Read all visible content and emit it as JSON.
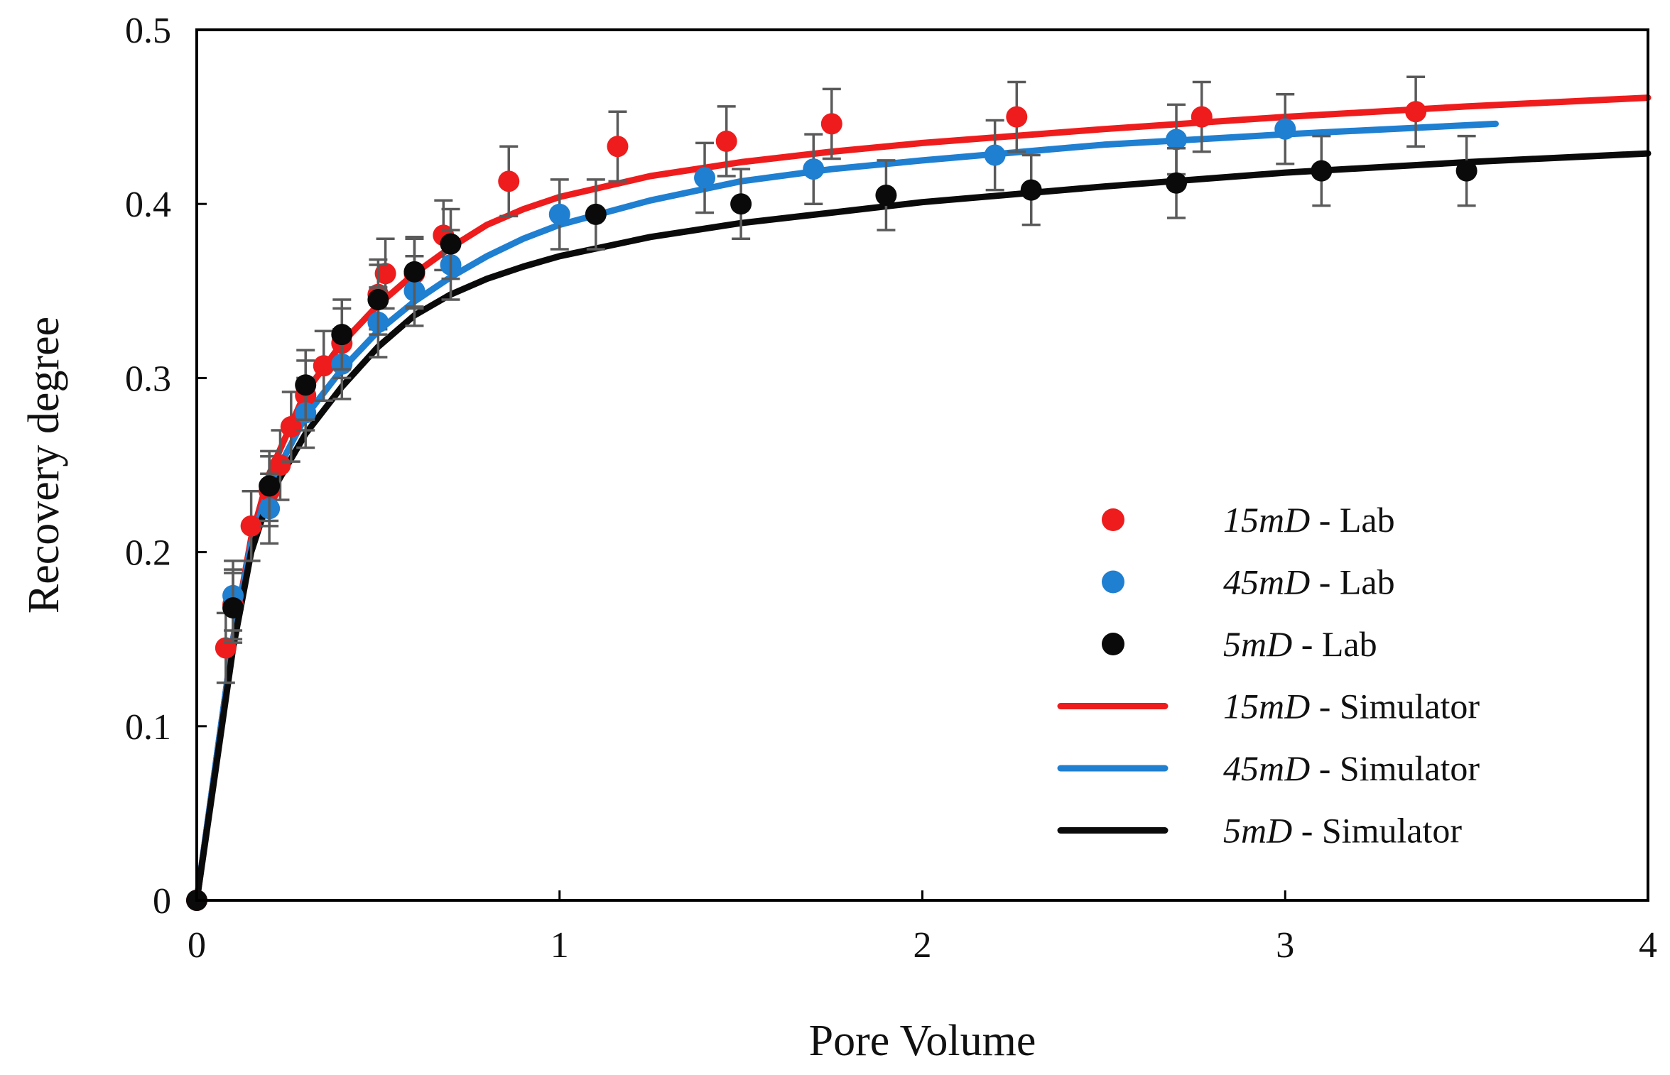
{
  "chart_data": {
    "type": "scatter",
    "title": "",
    "xlabel": "Pore Volume",
    "ylabel": "Recovery degree",
    "xlim": [
      0,
      4
    ],
    "ylim": [
      0,
      0.5
    ],
    "xticks": [
      "0",
      "1",
      "2",
      "3",
      "4"
    ],
    "xtick_values": [
      0,
      1,
      2,
      3,
      4
    ],
    "yticks": [
      "0",
      "0.1",
      "0.2",
      "0.3",
      "0.4",
      "0.5"
    ],
    "ytick_values": [
      0,
      0.1,
      0.2,
      0.3,
      0.4,
      0.5
    ],
    "error_bar": 0.02,
    "legend_position": "bottom-right",
    "colors": {
      "red": "#ee1c1c",
      "blue": "#1f7fd1",
      "black": "#0a0a0a",
      "errorbar": "#5a5a5a",
      "axis": "#000000"
    },
    "series": [
      {
        "name": "15mD - Lab",
        "perm": "15mD",
        "suffix": " - Lab",
        "kind": "scatter",
        "color": "#ee1c1c",
        "x": [
          0,
          0.08,
          0.1,
          0.15,
          0.2,
          0.23,
          0.26,
          0.3,
          0.35,
          0.4,
          0.5,
          0.52,
          0.6,
          0.68,
          0.86,
          1.16,
          1.46,
          1.75,
          2.26,
          2.77,
          3.36
        ],
        "y": [
          0,
          0.145,
          0.17,
          0.215,
          0.235,
          0.25,
          0.272,
          0.29,
          0.307,
          0.32,
          0.348,
          0.36,
          0.36,
          0.382,
          0.413,
          0.433,
          0.436,
          0.446,
          0.45,
          0.45,
          0.453
        ]
      },
      {
        "name": "45mD - Lab",
        "perm": "45mD",
        "suffix": " - Lab",
        "kind": "scatter",
        "color": "#1f7fd1",
        "x": [
          0.1,
          0.2,
          0.3,
          0.4,
          0.5,
          0.6,
          0.7,
          1.0,
          1.4,
          1.7,
          2.2,
          2.7,
          3.0
        ],
        "y": [
          0.175,
          0.225,
          0.28,
          0.308,
          0.332,
          0.35,
          0.365,
          0.394,
          0.415,
          0.42,
          0.428,
          0.437,
          0.443
        ]
      },
      {
        "name": "5mD - Lab",
        "perm": "5mD",
        "suffix": " - Lab",
        "kind": "scatter",
        "color": "#0a0a0a",
        "x": [
          0,
          0.1,
          0.2,
          0.3,
          0.4,
          0.5,
          0.6,
          0.7,
          1.1,
          1.5,
          1.9,
          2.3,
          2.7,
          3.1,
          3.5
        ],
        "y": [
          0,
          0.168,
          0.238,
          0.296,
          0.325,
          0.345,
          0.361,
          0.377,
          0.394,
          0.4,
          0.405,
          0.408,
          0.412,
          0.419,
          0.419
        ]
      },
      {
        "name": "15mD - Simulator",
        "perm": "15mD",
        "suffix": " - Simulator",
        "kind": "line",
        "color": "#ee1c1c",
        "x": [
          0,
          0.05,
          0.1,
          0.15,
          0.2,
          0.3,
          0.4,
          0.5,
          0.6,
          0.7,
          0.8,
          0.9,
          1.0,
          1.25,
          1.5,
          1.75,
          2.0,
          2.5,
          3.0,
          3.5,
          4.0
        ],
        "y": [
          0,
          0.075,
          0.15,
          0.208,
          0.245,
          0.292,
          0.32,
          0.342,
          0.36,
          0.375,
          0.388,
          0.397,
          0.404,
          0.416,
          0.424,
          0.43,
          0.435,
          0.443,
          0.45,
          0.456,
          0.461
        ]
      },
      {
        "name": "45mD - Simulator",
        "perm": "45mD",
        "suffix": " - Simulator",
        "kind": "line",
        "color": "#1f7fd1",
        "x": [
          0,
          0.05,
          0.1,
          0.15,
          0.2,
          0.3,
          0.4,
          0.5,
          0.6,
          0.7,
          0.8,
          0.9,
          1.0,
          1.25,
          1.5,
          1.75,
          2.0,
          2.5,
          3.0,
          3.58
        ],
        "y": [
          0,
          0.075,
          0.15,
          0.205,
          0.238,
          0.278,
          0.305,
          0.327,
          0.344,
          0.358,
          0.37,
          0.38,
          0.388,
          0.402,
          0.413,
          0.42,
          0.425,
          0.434,
          0.44,
          0.446
        ]
      },
      {
        "name": "5mD - Simulator",
        "perm": "5mD",
        "suffix": " - Simulator",
        "kind": "line",
        "color": "#0a0a0a",
        "x": [
          0,
          0.05,
          0.1,
          0.15,
          0.2,
          0.3,
          0.4,
          0.5,
          0.6,
          0.7,
          0.8,
          0.9,
          1.0,
          1.25,
          1.5,
          1.75,
          2.0,
          2.5,
          3.0,
          3.5,
          4.0
        ],
        "y": [
          0,
          0.072,
          0.145,
          0.2,
          0.232,
          0.268,
          0.295,
          0.318,
          0.336,
          0.348,
          0.357,
          0.364,
          0.37,
          0.381,
          0.389,
          0.395,
          0.401,
          0.41,
          0.418,
          0.424,
          0.429
        ]
      }
    ]
  }
}
